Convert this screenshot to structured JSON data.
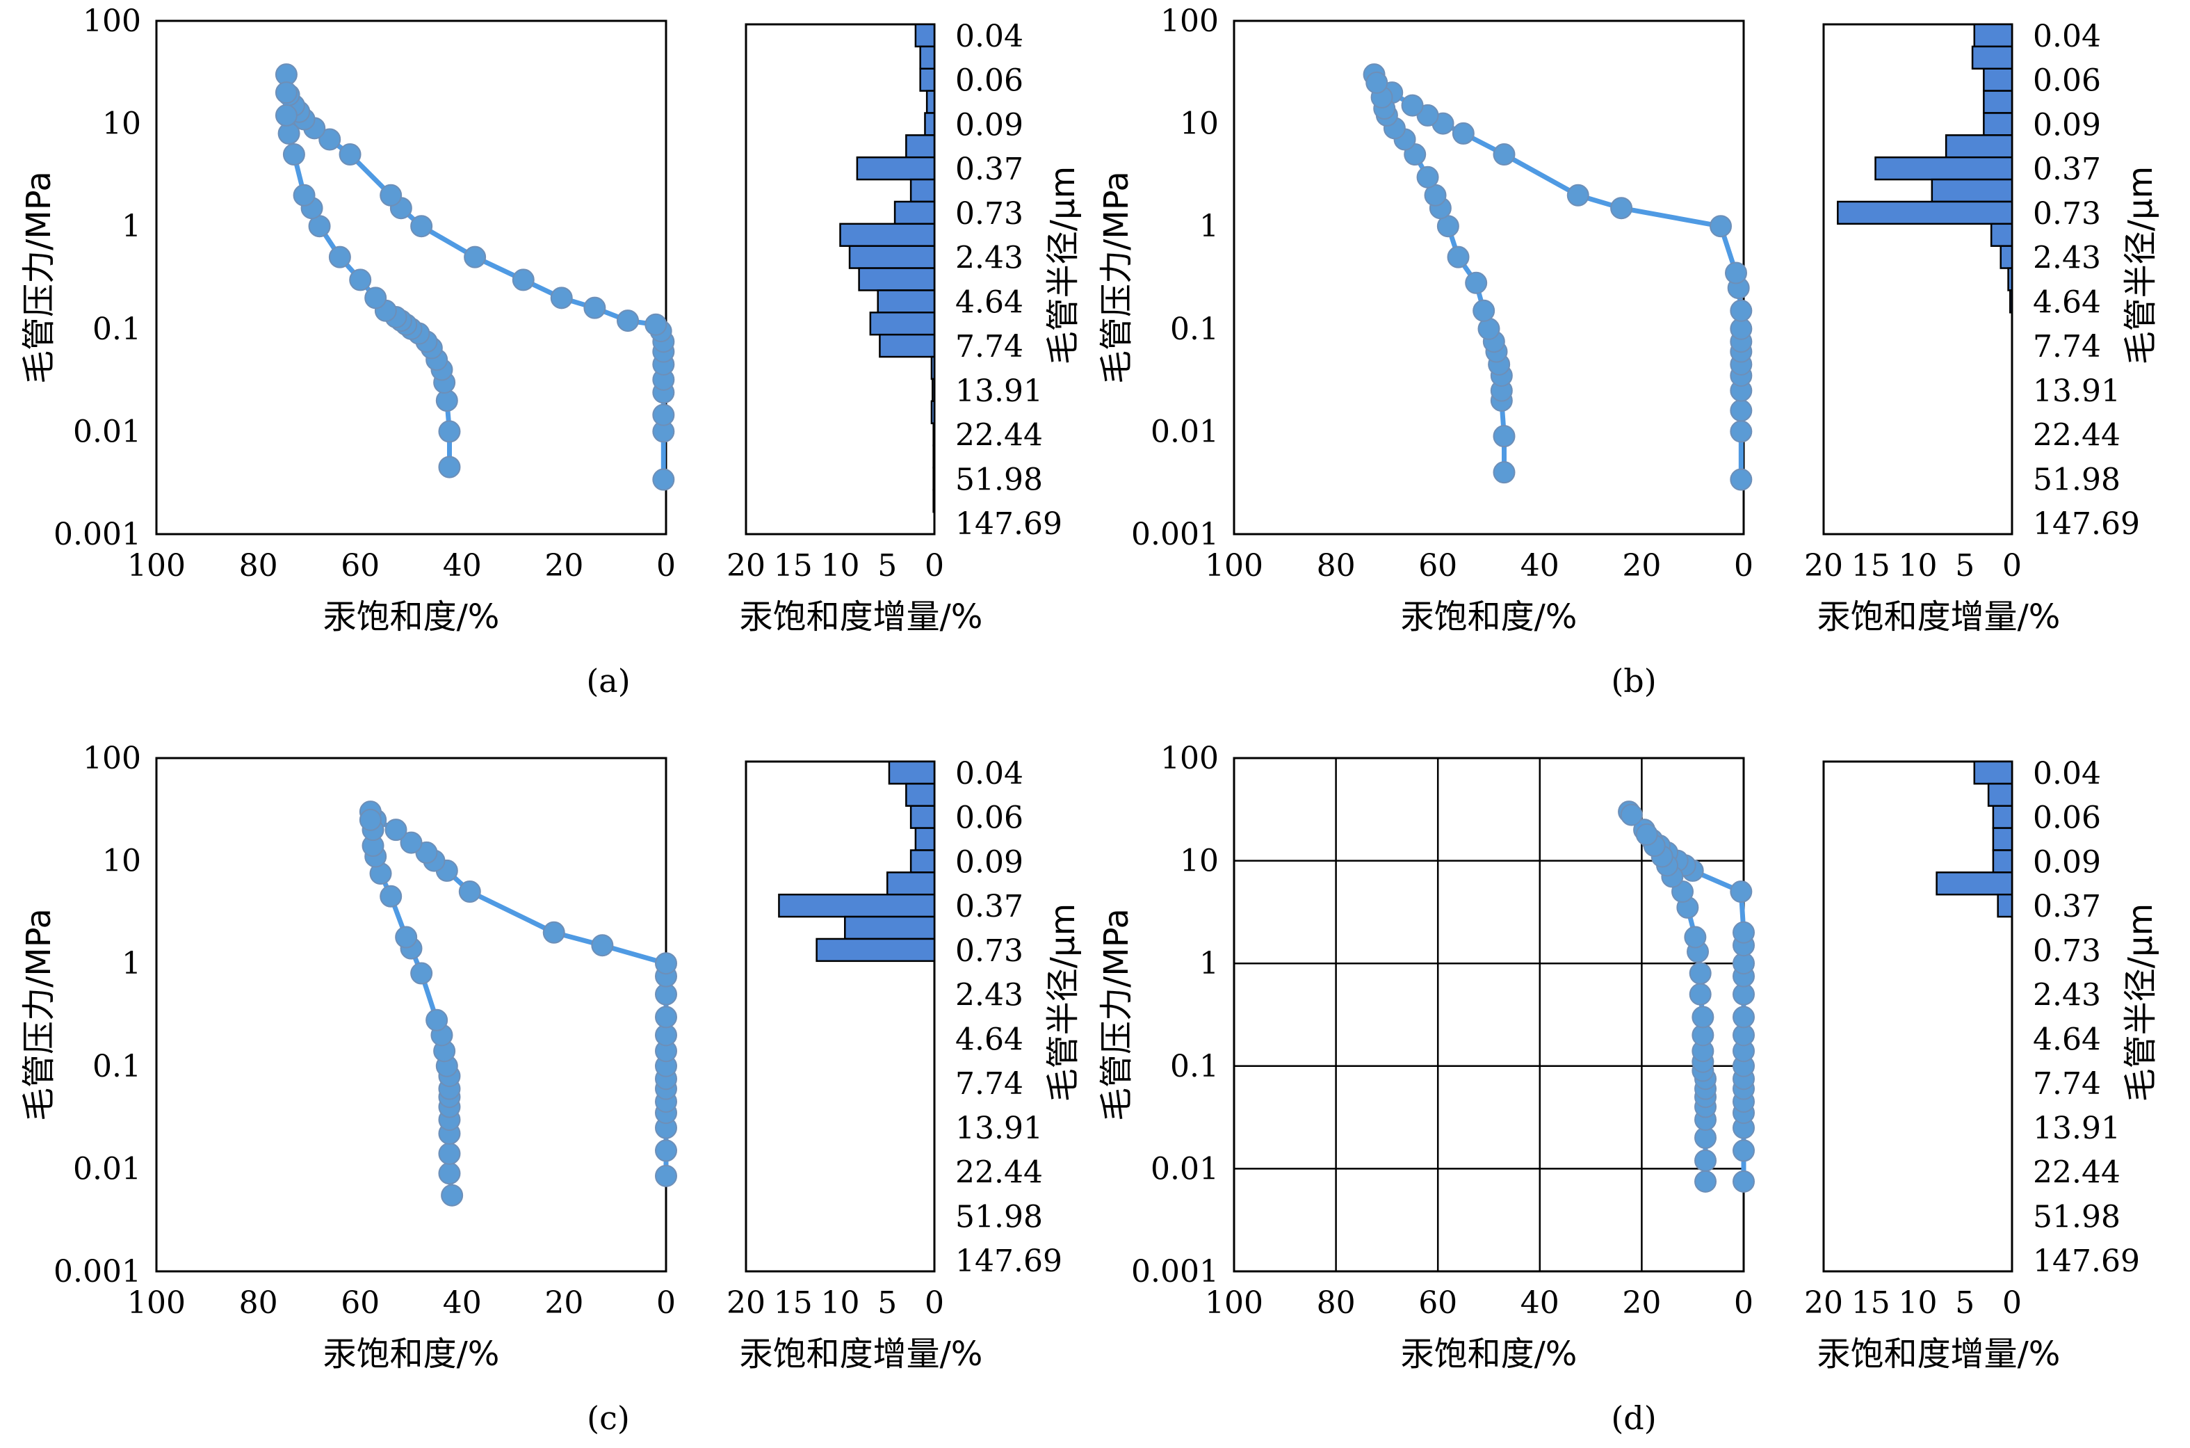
{
  "chart_data": [
    {
      "panel": "(a)",
      "type": "line",
      "xlabel": "汞饱和度/%",
      "ylabel": "毛管压力/MPa",
      "x_ticks": [
        "100",
        "80",
        "60",
        "40",
        "20",
        "0"
      ],
      "y_ticks": [
        "100",
        "10",
        "1",
        "0.1",
        "0.01",
        "0.001"
      ],
      "xlim": [
        100,
        0
      ],
      "ylim": [
        0.001,
        100
      ],
      "y_scale": "log",
      "grid": false,
      "series": [
        {
          "x": [
            0.5,
            0.5,
            0.5,
            0.5,
            0.5,
            0.5,
            0.5,
            0.5,
            1,
            2,
            7.5,
            14,
            20.5,
            28,
            37.5,
            48,
            52,
            54,
            62,
            66,
            69,
            71,
            72,
            73,
            74,
            74.5
          ],
          "y": [
            0.0034,
            0.01,
            0.0145,
            0.024,
            0.032,
            0.045,
            0.06,
            0.075,
            0.095,
            0.11,
            0.12,
            0.16,
            0.2,
            0.3,
            0.5,
            1.0,
            1.5,
            2.0,
            5.0,
            7.0,
            9.0,
            11.0,
            13.0,
            15.0,
            19.0,
            30.0
          ]
        },
        {
          "x": [
            42.5,
            42.5,
            43,
            43.5,
            44,
            45,
            46,
            47,
            48.5,
            50,
            51,
            52,
            53,
            55,
            57,
            60,
            64,
            68,
            69.5,
            71,
            73,
            74,
            74.5,
            74.5
          ],
          "y": [
            0.0045,
            0.01,
            0.02,
            0.03,
            0.04,
            0.05,
            0.065,
            0.075,
            0.09,
            0.1,
            0.11,
            0.12,
            0.13,
            0.15,
            0.2,
            0.3,
            0.5,
            1.0,
            1.5,
            2.0,
            5.0,
            8.0,
            12.0,
            20.0
          ]
        }
      ]
    },
    {
      "panel": "(a)",
      "type": "bar",
      "orientation": "horizontal",
      "xlabel": "汞饱和度增量/%",
      "ylabel": "毛管半径/μm",
      "x_ticks": [
        "20",
        "15",
        "10",
        "5",
        "0"
      ],
      "xlim": [
        20,
        0
      ],
      "categories": [
        "0.04",
        "",
        "0.06",
        "",
        "0.09",
        "",
        "0.37",
        "",
        "0.73",
        "",
        "2.43",
        "",
        "4.64",
        "",
        "7.74",
        "",
        "13.91",
        "",
        "22.44",
        "",
        "51.98",
        "",
        "147.69"
      ],
      "values": [
        2.0,
        1.5,
        1.5,
        0.8,
        1.0,
        3.0,
        8.2,
        2.5,
        4.2,
        10.0,
        9.0,
        8.0,
        6.0,
        6.8,
        5.8,
        0.3,
        0.2,
        0.3,
        0.1,
        0.1,
        0.1,
        0.1,
        0
      ]
    },
    {
      "panel": "(b)",
      "type": "line",
      "xlabel": "汞饱和度/%",
      "ylabel": "毛管压力/MPa",
      "x_ticks": [
        "100",
        "80",
        "60",
        "40",
        "20",
        "0"
      ],
      "y_ticks": [
        "100",
        "10",
        "1",
        "0.1",
        "0.01",
        "0.001"
      ],
      "xlim": [
        100,
        0
      ],
      "ylim": [
        0.001,
        100
      ],
      "y_scale": "log",
      "grid": false,
      "series": [
        {
          "x": [
            0.5,
            0.5,
            0.5,
            0.5,
            0.5,
            0.5,
            0.5,
            0.5,
            0.5,
            0.5,
            1,
            1.5,
            4.5,
            24,
            32.5,
            47,
            55,
            59,
            62,
            65,
            69,
            72.5
          ],
          "y": [
            0.0034,
            0.01,
            0.016,
            0.025,
            0.035,
            0.045,
            0.06,
            0.075,
            0.1,
            0.15,
            0.25,
            0.35,
            1.0,
            1.5,
            2.0,
            5.0,
            8.0,
            10.0,
            12.0,
            15.0,
            20.0,
            30.0
          ]
        },
        {
          "x": [
            47,
            47,
            47.5,
            47.5,
            47.5,
            48,
            48.5,
            49,
            50,
            51,
            52.5,
            56,
            58,
            59.5,
            60.5,
            62,
            64.5,
            66.5,
            68.5,
            70,
            70.5,
            71,
            72
          ],
          "y": [
            0.004,
            0.009,
            0.02,
            0.025,
            0.035,
            0.045,
            0.06,
            0.075,
            0.1,
            0.15,
            0.28,
            0.5,
            1.0,
            1.5,
            2.0,
            3.0,
            5.0,
            7.0,
            9.0,
            12.0,
            14.0,
            18.0,
            25.0
          ]
        }
      ]
    },
    {
      "panel": "(b)",
      "type": "bar",
      "orientation": "horizontal",
      "xlabel": "汞饱和度增量/%",
      "ylabel": "毛管半径/μm",
      "x_ticks": [
        "20",
        "15",
        "10",
        "5",
        "0"
      ],
      "xlim": [
        20,
        0
      ],
      "categories": [
        "0.04",
        "",
        "0.06",
        "",
        "0.09",
        "",
        "0.37",
        "",
        "0.73",
        "",
        "2.43",
        "",
        "4.64",
        "",
        "7.74",
        "",
        "13.91",
        "",
        "22.44",
        "",
        "51.98",
        "",
        "147.69"
      ],
      "values": [
        4.0,
        4.2,
        3.0,
        3.0,
        3.0,
        7.0,
        14.5,
        8.5,
        18.5,
        2.2,
        1.2,
        0.4,
        0.2,
        0,
        0,
        0,
        0,
        0,
        0,
        0,
        0,
        0,
        0
      ]
    },
    {
      "panel": "(c)",
      "type": "line",
      "xlabel": "汞饱和度/%",
      "ylabel": "毛管压力/MPa",
      "x_ticks": [
        "100",
        "80",
        "60",
        "40",
        "20",
        "0"
      ],
      "y_ticks": [
        "100",
        "10",
        "1",
        "0.1",
        "0.01",
        "0.001"
      ],
      "xlim": [
        100,
        0
      ],
      "ylim": [
        0.001,
        100
      ],
      "y_scale": "log",
      "grid": false,
      "series": [
        {
          "x": [
            0,
            0,
            0,
            0,
            0,
            0,
            0,
            0,
            0,
            0,
            0,
            0,
            0,
            0,
            12.5,
            22,
            38.5,
            43,
            45.5,
            47,
            50,
            53,
            57,
            58
          ],
          "y": [
            0.0085,
            0.015,
            0.025,
            0.035,
            0.045,
            0.06,
            0.075,
            0.1,
            0.14,
            0.2,
            0.3,
            0.5,
            0.75,
            1.0,
            1.5,
            2.0,
            5.0,
            8.0,
            10.0,
            12.0,
            15.0,
            20.0,
            25.0,
            30.0
          ]
        },
        {
          "x": [
            42,
            42.5,
            42.5,
            42.5,
            42.5,
            42.5,
            42.5,
            42.5,
            42.5,
            43,
            43.5,
            44,
            45,
            48,
            50,
            51,
            54,
            56,
            57,
            57.5,
            57.5,
            58
          ],
          "y": [
            0.0055,
            0.009,
            0.014,
            0.022,
            0.03,
            0.04,
            0.05,
            0.06,
            0.08,
            0.1,
            0.14,
            0.2,
            0.28,
            0.8,
            1.4,
            1.8,
            4.5,
            7.5,
            11.0,
            14.0,
            20.0,
            25.0
          ]
        }
      ]
    },
    {
      "panel": "(c)",
      "type": "bar",
      "orientation": "horizontal",
      "xlabel": "汞饱和度增量/%",
      "ylabel": "毛管半径/μm",
      "x_ticks": [
        "20",
        "15",
        "10",
        "5",
        "0"
      ],
      "xlim": [
        20,
        0
      ],
      "categories": [
        "0.04",
        "",
        "0.06",
        "",
        "0.09",
        "",
        "0.37",
        "",
        "0.73",
        "",
        "2.43",
        "",
        "4.64",
        "",
        "7.74",
        "",
        "13.91",
        "",
        "22.44",
        "",
        "51.98",
        "",
        "147.69"
      ],
      "values": [
        4.8,
        3.0,
        2.5,
        2.0,
        2.5,
        5.0,
        16.5,
        9.5,
        12.5,
        0,
        0,
        0,
        0,
        0,
        0,
        0,
        0,
        0,
        0,
        0,
        0,
        0,
        0
      ]
    },
    {
      "panel": "(d)",
      "type": "line",
      "xlabel": "汞饱和度/%",
      "ylabel": "毛管压力/MPa",
      "x_ticks": [
        "100",
        "80",
        "60",
        "40",
        "20",
        "0"
      ],
      "y_ticks": [
        "100",
        "10",
        "1",
        "0.1",
        "0.01",
        "0.001"
      ],
      "xlim": [
        100,
        0
      ],
      "ylim": [
        0.001,
        100
      ],
      "y_scale": "log",
      "grid": true,
      "series": [
        {
          "x": [
            0,
            0,
            0,
            0,
            0,
            0,
            0,
            0,
            0,
            0,
            0,
            0,
            0,
            0,
            0,
            0,
            0.5,
            10,
            11.5,
            13,
            15,
            16.5,
            18,
            19.5,
            22.5
          ],
          "y": [
            0.0075,
            0.015,
            0.025,
            0.035,
            0.045,
            0.06,
            0.075,
            0.1,
            0.14,
            0.2,
            0.3,
            0.5,
            0.75,
            1.0,
            1.5,
            2.0,
            5.0,
            8.0,
            9.0,
            10.0,
            12.0,
            14.0,
            16.0,
            20.0,
            30.0
          ]
        },
        {
          "x": [
            7.5,
            7.5,
            7.5,
            7.5,
            7.5,
            7.5,
            7.5,
            7.5,
            8,
            8,
            8,
            8,
            8,
            8.5,
            8.5,
            9,
            9.5,
            11,
            12,
            14,
            15,
            16,
            17.5,
            19,
            22
          ],
          "y": [
            0.0075,
            0.012,
            0.02,
            0.03,
            0.04,
            0.05,
            0.06,
            0.075,
            0.09,
            0.11,
            0.14,
            0.2,
            0.3,
            0.5,
            0.8,
            1.3,
            1.8,
            3.5,
            5.0,
            7.0,
            9.0,
            11.0,
            14.0,
            18.0,
            28.0
          ]
        }
      ]
    },
    {
      "panel": "(d)",
      "type": "bar",
      "orientation": "horizontal",
      "xlabel": "汞饱和度增量/%",
      "ylabel": "毛管半径/μm",
      "x_ticks": [
        "20",
        "15",
        "10",
        "5",
        "0"
      ],
      "xlim": [
        20,
        0
      ],
      "categories": [
        "0.04",
        "",
        "0.06",
        "",
        "0.09",
        "",
        "0.37",
        "",
        "0.73",
        "",
        "2.43",
        "",
        "4.64",
        "",
        "7.74",
        "",
        "13.91",
        "",
        "22.44",
        "",
        "51.98",
        "",
        "147.69"
      ],
      "values": [
        4.0,
        2.5,
        2.0,
        2.0,
        2.0,
        8.0,
        1.5,
        0,
        0,
        0,
        0,
        0,
        0,
        0,
        0,
        0,
        0,
        0,
        0,
        0,
        0,
        0,
        0
      ]
    }
  ],
  "figure": {
    "panel_labels": [
      "(a)",
      "(b)",
      "(c)",
      "(d)"
    ],
    "colors": {
      "line": "#4f9ae3",
      "marker": "#5b9bd5",
      "bar_fill": "#4f86d6",
      "bar_edge": "#000000"
    }
  }
}
